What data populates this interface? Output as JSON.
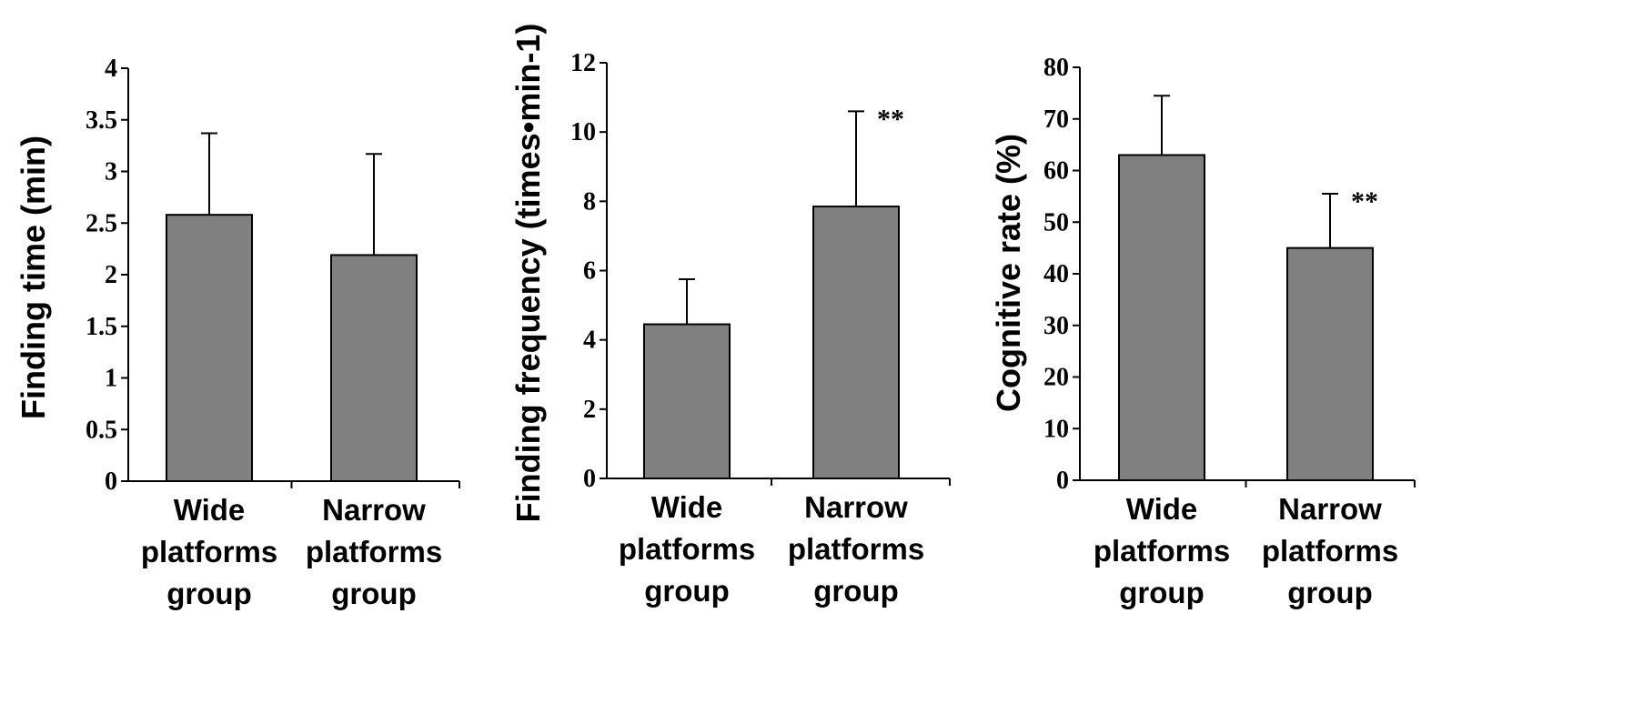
{
  "chart_data": [
    {
      "type": "bar",
      "ylabel": "Finding time (min)",
      "categories": [
        "Wide platforms group",
        "Narrow platforms group"
      ],
      "category_lines": [
        [
          "Wide",
          "platforms",
          "group"
        ],
        [
          "Narrow",
          "platforms",
          "group"
        ]
      ],
      "values": [
        2.58,
        2.19
      ],
      "error": [
        0.79,
        0.98
      ],
      "significance": [
        "",
        ""
      ],
      "ylim": [
        0,
        4
      ],
      "yticks": [
        0,
        0.5,
        1,
        1.5,
        2,
        2.5,
        3,
        3.5,
        4
      ],
      "ytick_labels": [
        "0",
        "0.5",
        "1",
        "1.5",
        "2",
        "2.5",
        "3",
        "3.5",
        "4"
      ],
      "bar_color": "#808080",
      "grid": false
    },
    {
      "type": "bar",
      "ylabel": "Finding frequency (times•min-1)",
      "categories": [
        "Wide platforms group",
        "Narrow platforms group"
      ],
      "category_lines": [
        [
          "Wide",
          "platforms",
          "group"
        ],
        [
          "Narrow",
          "platforms",
          "group"
        ]
      ],
      "values": [
        4.45,
        7.85
      ],
      "error": [
        1.3,
        2.75
      ],
      "significance": [
        "",
        "**"
      ],
      "ylim": [
        0,
        12
      ],
      "yticks": [
        0,
        2,
        4,
        6,
        8,
        10,
        12
      ],
      "ytick_labels": [
        "0",
        "2",
        "4",
        "6",
        "8",
        "10",
        "12"
      ],
      "bar_color": "#808080",
      "grid": false
    },
    {
      "type": "bar",
      "ylabel": "Cognitive rate (%)",
      "categories": [
        "Wide platforms group",
        "Narrow platforms group"
      ],
      "category_lines": [
        [
          "Wide",
          "platforms",
          "group"
        ],
        [
          "Narrow",
          "platforms",
          "group"
        ]
      ],
      "values": [
        63,
        45
      ],
      "error": [
        11.5,
        10.5
      ],
      "significance": [
        "",
        "**"
      ],
      "ylim": [
        0,
        80
      ],
      "yticks": [
        0,
        10,
        20,
        30,
        40,
        50,
        60,
        70,
        80
      ],
      "ytick_labels": [
        "0",
        "10",
        "20",
        "30",
        "40",
        "50",
        "60",
        "70",
        "80"
      ],
      "bar_color": "#808080",
      "grid": false
    }
  ]
}
